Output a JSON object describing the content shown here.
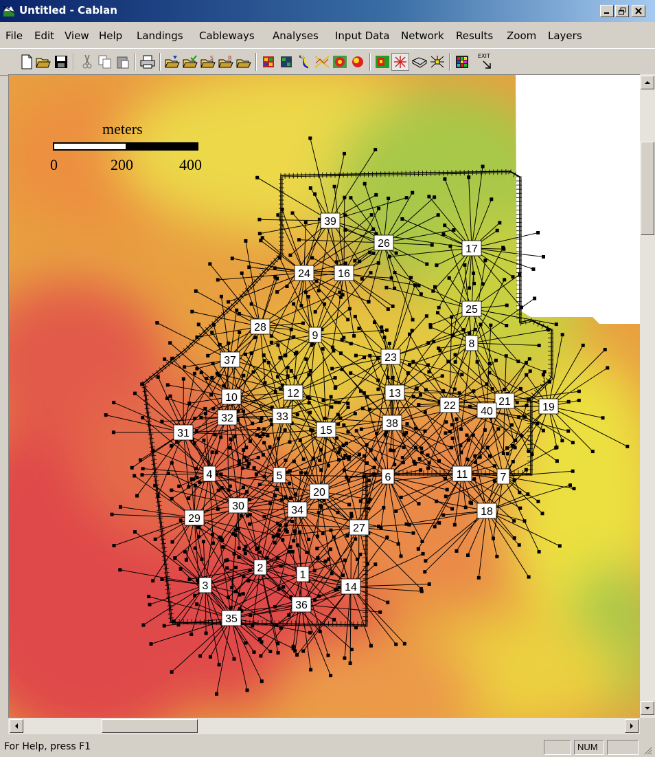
{
  "window": {
    "title": "Untitled - Cablan",
    "minimize_icon": "minimize-icon",
    "restore_icon": "restore-icon",
    "close_icon": "close-icon"
  },
  "menu": [
    "File",
    "Edit",
    "View",
    "Help",
    "Landings",
    "Cableways",
    "Analyses",
    "Input Data",
    "Network",
    "Results",
    "Zoom",
    "Layers"
  ],
  "toolbar": {
    "icons": [
      "new-file-icon",
      "open-folder-icon",
      "save-icon",
      "cut-icon",
      "copy-icon",
      "paste-icon",
      "print-icon",
      "open-landing-file-icon",
      "open-cableway-file-icon",
      "open-s-file-icon",
      "open-r-file-icon",
      "open-file-icon",
      "grid-color-icon",
      "grid-dark-icon",
      "curve-icon",
      "cable-path-icon",
      "terrain-analysis-icon",
      "shaded-terrain-icon",
      "color-map-icon",
      "star-cable-icon",
      "settle-icon",
      "network-icon",
      "colorful-grid-icon"
    ],
    "exit_label": "EXIT"
  },
  "map": {
    "colors": {
      "red": "#e04848",
      "orange": "#ec8a4a",
      "yellow": "#ece43c",
      "green": "#9cc845",
      "line": "#000000",
      "label_bg": "#ffffff"
    },
    "scale_bar": {
      "title": "meters",
      "labels": [
        "0",
        "200",
        "400"
      ]
    },
    "landings": [
      "39",
      "26",
      "17",
      "24",
      "16",
      "25",
      "28",
      "9",
      "8",
      "37",
      "23",
      "12",
      "13",
      "10",
      "22",
      "21",
      "40",
      "19",
      "32",
      "33",
      "38",
      "31",
      "15",
      "4",
      "5",
      "6",
      "11",
      "7",
      "20",
      "30",
      "34",
      "18",
      "29",
      "27",
      "2",
      "1",
      "3",
      "14",
      "36",
      "35"
    ]
  },
  "status": {
    "message": "For Help, press F1",
    "num": "NUM"
  }
}
